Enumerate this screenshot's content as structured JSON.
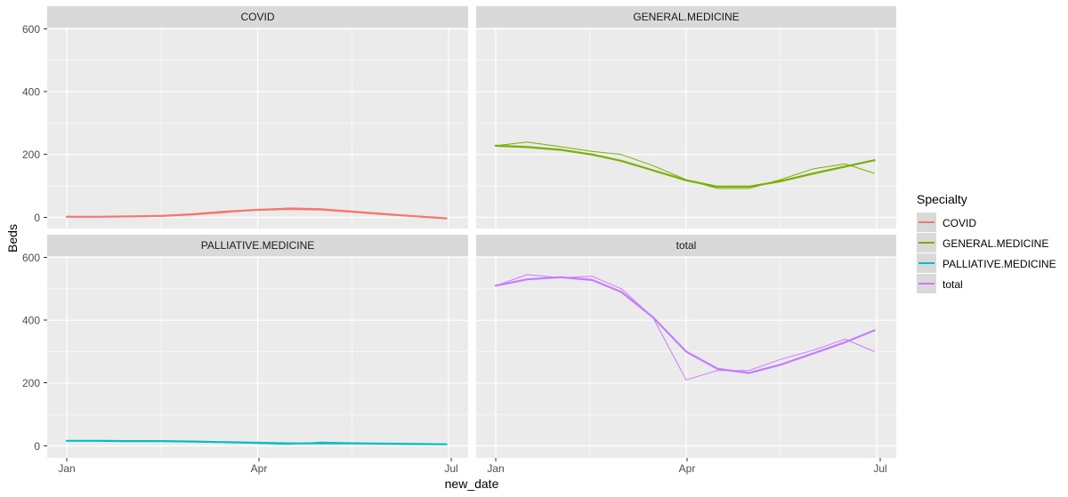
{
  "figure": {
    "xlabel": "new_date",
    "ylabel": "Beds",
    "legend_title": "Specialty"
  },
  "colors": {
    "COVID": "#F8766D",
    "GENERAL.MEDICINE": "#7CAE00",
    "PALLIATIVE.MEDICINE": "#00BFC4",
    "total": "#C77CFF",
    "panel_bg": "#EBEBEB",
    "strip_bg": "#D9D9D9",
    "grid": "#FFFFFF"
  },
  "chart_data": {
    "type": "line",
    "facets": [
      "COVID",
      "GENERAL.MEDICINE",
      "PALLIATIVE.MEDICINE",
      "total"
    ],
    "x_ticks": [
      "Jan",
      "Apr",
      "Jul"
    ],
    "y_ticks": [
      0,
      200,
      400,
      600
    ],
    "ylim": [
      -30,
      620
    ],
    "xlim": [
      "2020-01-01",
      "2020-07-01"
    ],
    "legend_position": "right",
    "grid": true,
    "x": [
      "2020-01-01",
      "2020-01-16",
      "2020-02-01",
      "2020-02-16",
      "2020-03-01",
      "2020-03-16",
      "2020-04-01",
      "2020-04-16",
      "2020-05-01",
      "2020-05-16",
      "2020-06-01",
      "2020-06-16",
      "2020-06-30"
    ],
    "series": [
      {
        "name": "COVID",
        "values": [
          3,
          2,
          2,
          3,
          8,
          15,
          25,
          30,
          28,
          20,
          12,
          4,
          -2
        ],
        "smooth": [
          2,
          2,
          3,
          5,
          10,
          18,
          24,
          27,
          25,
          18,
          10,
          3,
          -3
        ]
      },
      {
        "name": "GENERAL.MEDICINE",
        "values": [
          228,
          240,
          225,
          210,
          200,
          165,
          120,
          92,
          92,
          120,
          155,
          170,
          140
        ],
        "smooth": [
          228,
          224,
          215,
          200,
          180,
          150,
          118,
          98,
          98,
          115,
          140,
          162,
          182
        ]
      },
      {
        "name": "PALLIATIVE.MEDICINE",
        "values": [
          16,
          17,
          17,
          16,
          15,
          12,
          8,
          5,
          12,
          10,
          8,
          6,
          5
        ],
        "smooth": [
          16,
          16,
          15,
          15,
          14,
          12,
          10,
          8,
          8,
          8,
          7,
          6,
          5
        ]
      },
      {
        "name": "total",
        "values": [
          510,
          545,
          535,
          540,
          500,
          410,
          210,
          240,
          240,
          275,
          305,
          340,
          300
        ],
        "smooth": [
          510,
          530,
          537,
          528,
          490,
          410,
          300,
          245,
          232,
          258,
          295,
          330,
          368
        ]
      }
    ]
  }
}
